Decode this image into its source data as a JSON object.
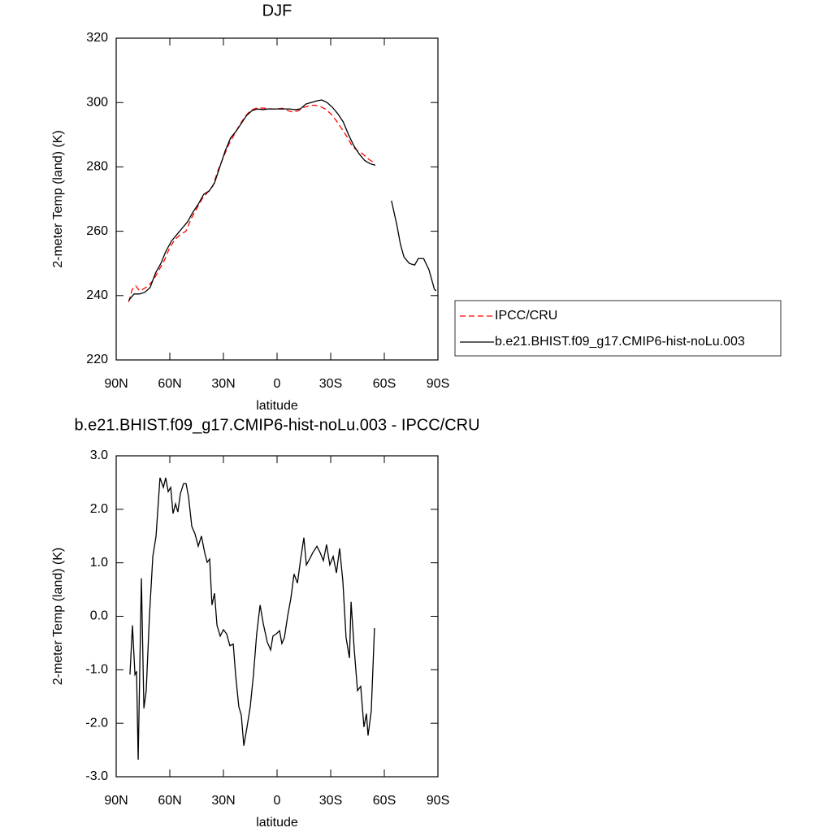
{
  "chart_data": [
    {
      "type": "line",
      "title": "DJF",
      "x_label": "latitude",
      "y_label": "2-meter Temp (land) (K)",
      "xlim": [
        90,
        -90
      ],
      "xticks": [
        {
          "value": 90,
          "label": "90N"
        },
        {
          "value": 60,
          "label": "60N"
        },
        {
          "value": 30,
          "label": "30N"
        },
        0,
        {
          "value": -30,
          "label": "30S"
        },
        {
          "value": -60,
          "label": "60S"
        },
        {
          "value": -90,
          "label": "90S"
        }
      ],
      "ylim": [
        220,
        320
      ],
      "yticks": [
        220,
        240,
        260,
        280,
        300,
        320
      ],
      "legend": "right",
      "series": [
        {
          "name": "IPCC/CRU",
          "color": "#ff0000",
          "line_style": "dashed",
          "x": [
            83,
            81,
            79,
            77,
            75,
            72,
            69,
            66,
            63,
            60,
            57,
            54,
            51,
            48,
            45,
            42,
            39,
            36,
            33,
            30,
            27,
            24,
            21,
            18,
            15,
            12,
            9,
            6,
            3,
            0,
            -3,
            -6,
            -9,
            -12,
            -15,
            -18,
            -21,
            -24,
            -27,
            -30,
            -33,
            -36,
            -39,
            -42,
            -45,
            -48,
            -51,
            -55
          ],
          "values": [
            238,
            242,
            243,
            241.5,
            242,
            243,
            245,
            248,
            251,
            255,
            257.5,
            259,
            260,
            264,
            267,
            270,
            272,
            274,
            279,
            283,
            287,
            290,
            293,
            295.5,
            297.5,
            298.2,
            298.3,
            298.2,
            298,
            298,
            298.2,
            297.5,
            297,
            297.5,
            298.5,
            299,
            299.2,
            298.8,
            298,
            296.5,
            294.5,
            292,
            289.5,
            286.5,
            285,
            284,
            282.5,
            281
          ]
        },
        {
          "name": "b.e21.BHIST.f09_g17.CMIP6-hist-noLu.003",
          "color": "#000000",
          "line_style": "solid",
          "x": [
            83,
            80,
            77,
            74,
            71,
            68,
            65,
            62,
            59,
            56,
            53,
            50,
            47,
            44,
            41,
            38,
            35,
            32,
            29,
            26,
            23,
            20,
            17,
            14,
            11,
            8,
            5,
            2,
            -1,
            -4,
            -7,
            -10,
            -13,
            -16,
            -19,
            -22,
            -25,
            -28,
            -31,
            -34,
            -37,
            -40,
            -43,
            -46,
            -49,
            -52,
            -55,
            -60,
            -64,
            -67,
            -69,
            -71,
            -74,
            -77,
            -79,
            -82,
            -85,
            -88,
            -89
          ],
          "values": [
            238.5,
            240.5,
            240.5,
            241,
            242.5,
            247,
            250,
            254,
            257,
            259,
            261,
            263,
            266,
            268.5,
            271.5,
            272.5,
            275,
            280,
            285,
            289,
            291,
            293.5,
            296,
            297.5,
            298,
            297.8,
            298,
            298,
            298,
            298,
            298,
            297.8,
            298,
            299.5,
            300,
            300.5,
            300.8,
            300,
            298.5,
            296.5,
            294,
            290,
            286.5,
            284,
            282,
            281,
            280.5,
            null,
            269.5,
            262,
            256,
            252,
            250,
            249.5,
            251.5,
            251.5,
            248,
            242,
            241.5
          ]
        }
      ]
    },
    {
      "type": "line",
      "title": "b.e21.BHIST.f09_g17.CMIP6-hist-noLu.003 - IPCC/CRU",
      "x_label": "latitude",
      "y_label": "2-meter Temp (land) (K)",
      "xlim": [
        90,
        -90
      ],
      "xticks": [
        {
          "value": 90,
          "label": "90N"
        },
        {
          "value": 60,
          "label": "60N"
        },
        {
          "value": 30,
          "label": "30N"
        },
        0,
        {
          "value": -30,
          "label": "30S"
        },
        {
          "value": -60,
          "label": "60S"
        },
        {
          "value": -90,
          "label": "90S"
        }
      ],
      "ylim": [
        -3,
        3
      ],
      "yticks": [
        {
          "value": -3,
          "label": "-3.0"
        },
        {
          "value": -2,
          "label": "-2.0"
        },
        {
          "value": -1,
          "label": "-1.0"
        },
        {
          "value": 0,
          "label": "0.0"
        },
        {
          "value": 1,
          "label": "1.0"
        },
        {
          "value": 2,
          "label": "2.0"
        },
        {
          "value": 3,
          "label": "3.0"
        }
      ],
      "series": [
        {
          "color": "#000000",
          "line_style": "solid",
          "x": [
            82.3,
            80.9,
            79.5,
            78.6,
            77.7,
            75.9,
            74.5,
            73.2,
            71.4,
            69.5,
            67.7,
            65.5,
            63.6,
            62.3,
            60.9,
            59.5,
            58.2,
            56.8,
            55.5,
            54.1,
            52.3,
            50.9,
            49.5,
            47.7,
            45.9,
            44.1,
            42.3,
            40.5,
            39.1,
            37.7,
            36.4,
            35.0,
            33.6,
            31.8,
            30.0,
            28.2,
            26.4,
            24.5,
            23.2,
            21.4,
            20.0,
            18.6,
            16.8,
            15.0,
            13.2,
            11.4,
            9.5,
            7.7,
            5.5,
            3.6,
            2.3,
            0.5,
            -1.4,
            -2.7,
            -4.1,
            -5.9,
            -7.7,
            -9.5,
            -11.4,
            -13.2,
            -15.0,
            -16.4,
            -18.2,
            -20.0,
            -22.3,
            -24.1,
            -25.9,
            -27.7,
            -29.5,
            -31.4,
            -33.2,
            -35.0,
            -36.8,
            -38.6,
            -40.5,
            -41.4,
            -43.2,
            -45.0,
            -46.8,
            -48.6,
            -50.0,
            -50.9,
            -52.7,
            -54.5
          ],
          "values": [
            -1.09,
            -0.17,
            -1.09,
            -1.03,
            -2.68,
            0.71,
            -1.72,
            -1.39,
            0,
            1.12,
            1.5,
            2.59,
            2.41,
            2.59,
            2.33,
            2.41,
            1.92,
            2.1,
            1.95,
            2.29,
            2.48,
            2.48,
            2.23,
            1.68,
            1.54,
            1.31,
            1.5,
            1.19,
            1.01,
            1.07,
            0.21,
            0.43,
            -0.17,
            -0.37,
            -0.25,
            -0.33,
            -0.55,
            -0.52,
            -1.09,
            -1.69,
            -1.85,
            -2.42,
            -2.07,
            -1.69,
            -1.09,
            -0.33,
            0.21,
            -0.14,
            -0.48,
            -0.63,
            -0.37,
            -0.33,
            -0.27,
            -0.51,
            -0.4,
            0,
            0.33,
            0.79,
            0.62,
            1.07,
            1.47,
            0.96,
            1.07,
            1.19,
            1.31,
            1.19,
            1.04,
            1.34,
            0.96,
            1.12,
            0.81,
            1.27,
            0.66,
            -0.4,
            -0.78,
            0.27,
            -0.63,
            -1.39,
            -1.31,
            -2.07,
            -1.82,
            -2.23,
            -1.77,
            -0.22
          ]
        }
      ]
    }
  ]
}
